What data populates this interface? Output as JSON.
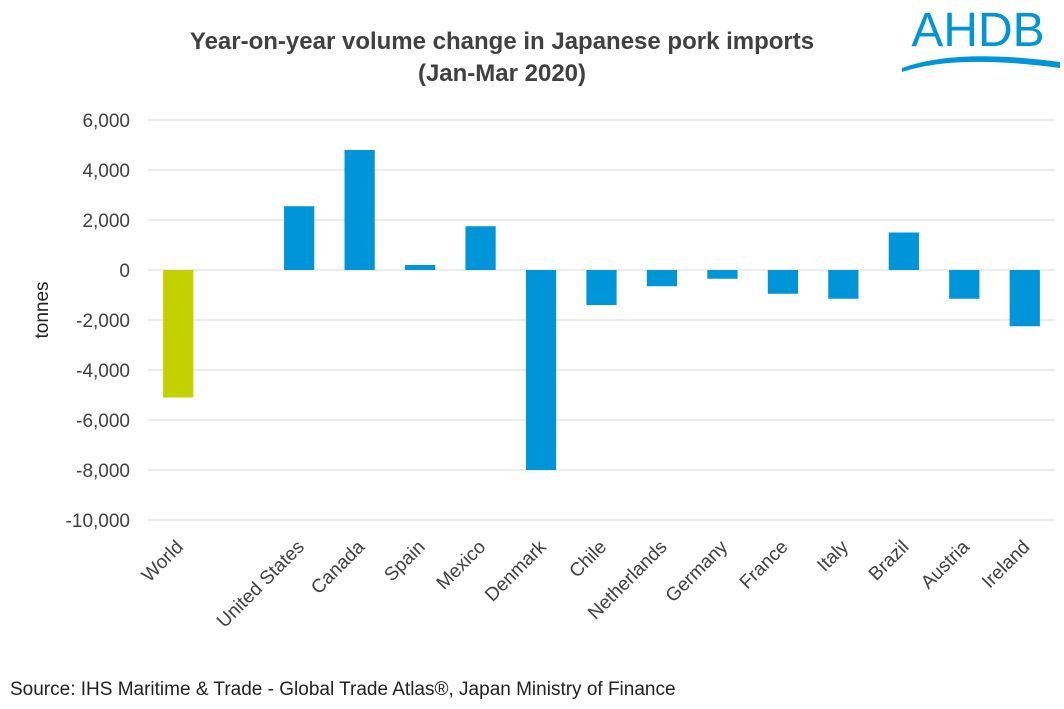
{
  "logo": {
    "text": "AHDB",
    "color": "#0095d9"
  },
  "source": "Source: IHS Maritime & Trade - Global Trade Atlas®, Japan Ministry of Finance",
  "chart_data": {
    "type": "bar",
    "title": "Year-on-year volume change in Japanese pork imports",
    "subtitle": "(Jan-Mar 2020)",
    "xlabel": "",
    "ylabel": "tonnes",
    "ylim": [
      -10000,
      6000
    ],
    "yticks": [
      6000,
      4000,
      2000,
      0,
      -2000,
      -4000,
      -6000,
      -8000,
      -10000
    ],
    "ytick_labels": [
      "6,000",
      "4,000",
      "2,000",
      "0",
      "-2,000",
      "-4,000",
      "-6,000",
      "-8,000",
      "-10,000"
    ],
    "grid": true,
    "legend": "none",
    "categories": [
      "World",
      "",
      "United States",
      "Canada",
      "Spain",
      "Mexico",
      "Denmark",
      "Chile",
      "Netherlands",
      "Germany",
      "France",
      "Italy",
      "Brazil",
      "Austria",
      "Ireland"
    ],
    "values": [
      -5100,
      null,
      2550,
      4800,
      200,
      1750,
      -8000,
      -1400,
      -650,
      -350,
      -950,
      -1150,
      1500,
      -1150,
      -2250
    ],
    "colors": [
      "#c4d100",
      null,
      "#0095d9",
      "#0095d9",
      "#0095d9",
      "#0095d9",
      "#0095d9",
      "#0095d9",
      "#0095d9",
      "#0095d9",
      "#0095d9",
      "#0095d9",
      "#0095d9",
      "#0095d9",
      "#0095d9"
    ]
  }
}
